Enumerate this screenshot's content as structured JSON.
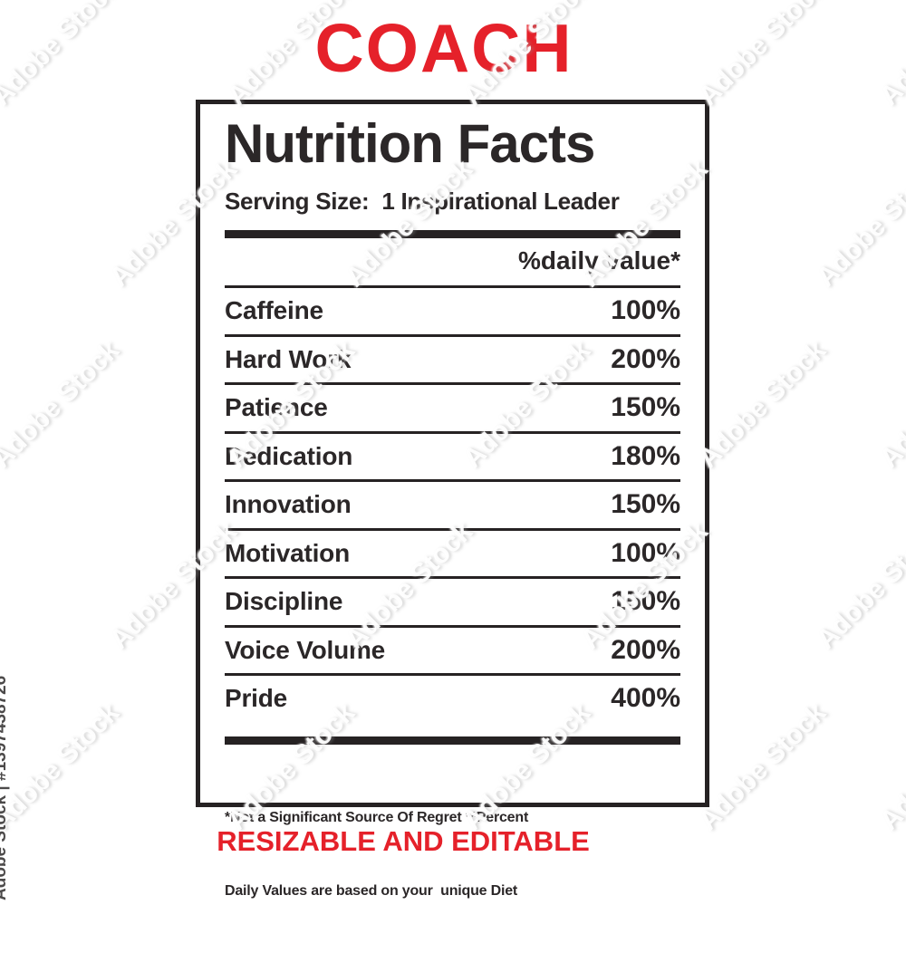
{
  "page": {
    "top_title": "COACH",
    "bottom_title": "RESIZABLE AND EDITABLE",
    "accent_color": "#e5212a",
    "text_color": "#2b2728"
  },
  "label": {
    "heading": "Nutrition Facts",
    "serving_label": "Serving Size:",
    "serving_value": "1 Inspirational Leader",
    "daily_value_header": "%daily value*",
    "rows": [
      {
        "name": "Caffeine",
        "value": "100%"
      },
      {
        "name": "Hard Work",
        "value": "200%"
      },
      {
        "name": "Patience",
        "value": "150%"
      },
      {
        "name": "Dedication",
        "value": "180%"
      },
      {
        "name": "Innovation",
        "value": "150%"
      },
      {
        "name": "Motivation",
        "value": "100%"
      },
      {
        "name": "Discipline",
        "value": "150%"
      },
      {
        "name": "Voice Volume",
        "value": "200%"
      },
      {
        "name": "Pride",
        "value": "400%"
      }
    ],
    "footnote_line1": "*Not a Significant Source Of Regret **Percent",
    "footnote_line2": "Daily Values are based on your  unique Diet"
  },
  "watermark": {
    "tile_text": "Adobe Stock",
    "stock_id_text": "Adobe Stock | #1397438726"
  }
}
